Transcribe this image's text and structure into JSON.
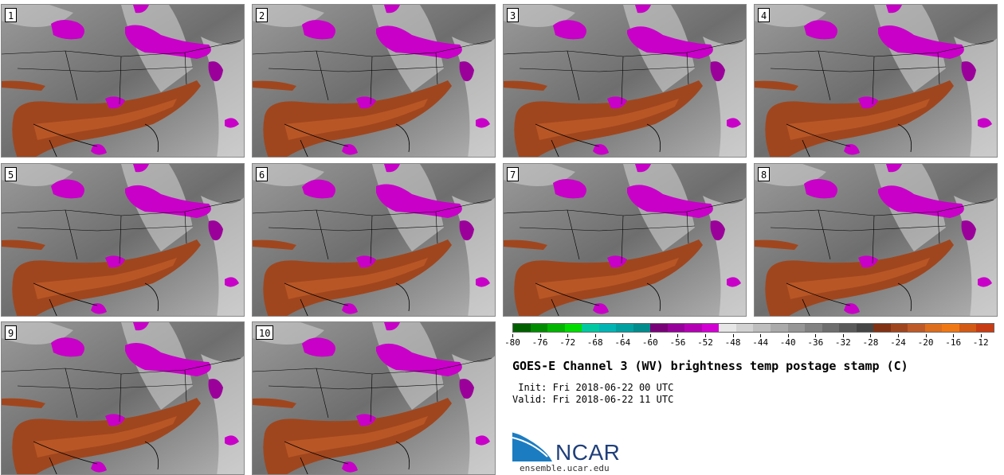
{
  "panels": [
    {
      "label": "1"
    },
    {
      "label": "2"
    },
    {
      "label": "3"
    },
    {
      "label": "4"
    },
    {
      "label": "5"
    },
    {
      "label": "6"
    },
    {
      "label": "7"
    },
    {
      "label": "8"
    },
    {
      "label": "9"
    },
    {
      "label": "10"
    }
  ],
  "colorbar": {
    "colors": [
      "#006000",
      "#008c00",
      "#00b400",
      "#00dc00",
      "#00c8a0",
      "#00b4b4",
      "#00a0a0",
      "#008c8c",
      "#780078",
      "#96009b",
      "#b400b4",
      "#d200d2",
      "#e6e6e6",
      "#d2d2d2",
      "#bebebe",
      "#aaaaaa",
      "#969696",
      "#828282",
      "#6e6e6e",
      "#5a5a5a",
      "#464646",
      "#823214",
      "#a0461e",
      "#be5a28",
      "#dc6e1e",
      "#f07814",
      "#d25a14",
      "#c83c14"
    ],
    "tick_labels": [
      "-80",
      "-76",
      "-72",
      "-68",
      "-64",
      "-60",
      "-56",
      "-52",
      "-48",
      "-44",
      "-40",
      "-36",
      "-32",
      "-28",
      "-24",
      "-20",
      "-16",
      "-12"
    ],
    "min": -80,
    "max": -10
  },
  "title": "GOES-E Channel 3 (WV) brightness temp postage stamp (C)",
  "init": " Init: Fri 2018-06-22 00 UTC",
  "valid": "Valid: Fri 2018-06-22 11 UTC",
  "logo_text": "NCAR",
  "site": "ensemble.ucar.edu",
  "colors": {
    "moist_purple": "#c800c8",
    "dry_brown": "#a0461e",
    "background_gray": "#7d7d7d"
  }
}
